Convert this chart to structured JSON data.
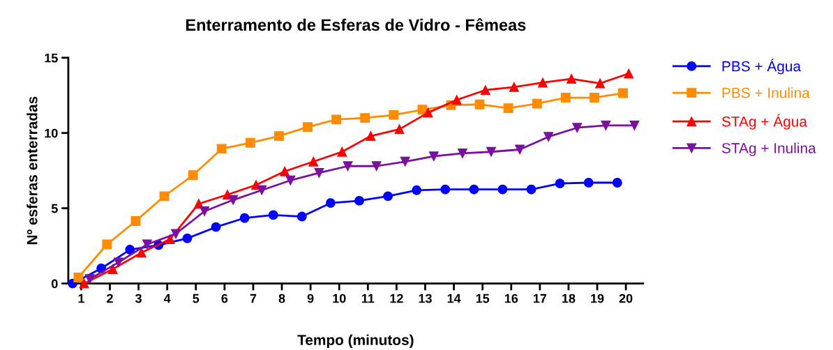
{
  "chart_data": {
    "type": "line",
    "title": "Enterramento de Esferas de Vidro - Fêmeas",
    "xlabel": "Tempo (minutos)",
    "ylabel": "Nº esferas enterradas",
    "xlim": [
      0.55,
      20.6
    ],
    "xticks": [
      1,
      2,
      3,
      4,
      5,
      6,
      7,
      8,
      9,
      10,
      11,
      12,
      13,
      14,
      15,
      16,
      17,
      18,
      19,
      20
    ],
    "ylim": [
      0,
      15
    ],
    "yticks": [
      0,
      5,
      10,
      15
    ],
    "grid": false,
    "legend": "right",
    "series": [
      {
        "name": "PBS + Água",
        "color": "#0000ff",
        "marker": "circle",
        "x": [
          0.7,
          1.7,
          2.7,
          3.7,
          4.7,
          5.7,
          6.7,
          7.7,
          8.7,
          9.7,
          10.7,
          11.7,
          12.7,
          13.7,
          14.7,
          15.7,
          16.7,
          17.7,
          18.7,
          19.7
        ],
        "values": [
          0,
          1.0,
          2.25,
          2.55,
          3.0,
          3.75,
          4.35,
          4.55,
          4.45,
          5.35,
          5.5,
          5.8,
          6.2,
          6.25,
          6.25,
          6.25,
          6.25,
          6.65,
          6.7,
          6.7
        ]
      },
      {
        "name": "PBS + Inulina",
        "color": "#ff8c00",
        "marker": "square",
        "x": [
          0.9,
          1.9,
          2.9,
          3.9,
          4.9,
          5.9,
          6.9,
          7.9,
          8.9,
          9.9,
          10.9,
          11.9,
          12.9,
          13.9,
          14.9,
          15.9,
          16.9,
          17.9,
          18.9,
          19.9
        ],
        "values": [
          0.4,
          2.6,
          4.15,
          5.8,
          7.2,
          8.95,
          9.35,
          9.8,
          10.4,
          10.9,
          11.0,
          11.2,
          11.55,
          11.85,
          11.9,
          11.65,
          11.95,
          12.35,
          12.35,
          12.65
        ]
      },
      {
        "name": "STAg + Água",
        "color": "#ff0000",
        "marker": "triangle",
        "x": [
          1.1,
          2.1,
          3.1,
          4.1,
          5.1,
          6.1,
          7.1,
          8.1,
          9.1,
          10.1,
          11.1,
          12.1,
          13.1,
          14.1,
          15.1,
          16.1,
          17.1,
          18.1,
          19.1,
          20.1
        ],
        "values": [
          0,
          0.95,
          2.05,
          2.95,
          5.3,
          5.9,
          6.55,
          7.45,
          8.1,
          8.75,
          9.8,
          10.25,
          11.35,
          12.2,
          12.85,
          13.05,
          13.35,
          13.6,
          13.3,
          13.95
        ]
      },
      {
        "name": "STAg + Inulina",
        "color": "#7b0fa0",
        "marker": "triangle_down",
        "x": [
          1.3,
          2.3,
          3.3,
          4.3,
          5.3,
          6.3,
          7.3,
          8.3,
          9.3,
          10.3,
          11.3,
          12.3,
          13.3,
          14.3,
          15.3,
          16.3,
          17.3,
          18.3,
          19.3,
          20.3
        ],
        "values": [
          0.3,
          1.4,
          2.6,
          3.3,
          4.8,
          5.55,
          6.2,
          6.85,
          7.35,
          7.8,
          7.8,
          8.1,
          8.45,
          8.65,
          8.75,
          8.9,
          9.75,
          10.35,
          10.5,
          10.5
        ]
      }
    ]
  }
}
